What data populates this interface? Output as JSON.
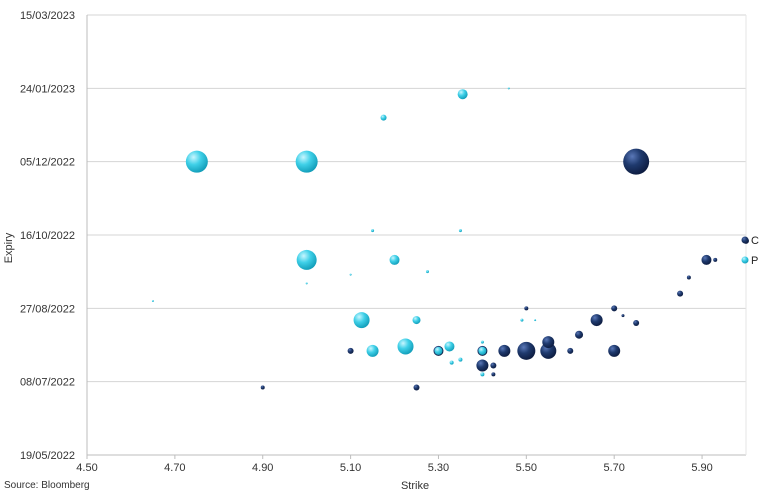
{
  "chart_data": {
    "type": "scatter",
    "xlabel": "Strike",
    "ylabel": "Expiry",
    "xlim": [
      4.5,
      6.0
    ],
    "ylim": [
      "2022-05-19",
      "2023-03-15"
    ],
    "x_ticks": [
      "4.50",
      "4.70",
      "4.90",
      "5.10",
      "5.30",
      "5.50",
      "5.70",
      "5.90"
    ],
    "x_tick_values": [
      4.5,
      4.7,
      4.9,
      5.1,
      5.3,
      5.5,
      5.7,
      5.9
    ],
    "y_ticks": [
      "15/03/2023",
      "24/01/2023",
      "05/12/2022",
      "16/10/2022",
      "27/08/2022",
      "08/07/2022",
      "19/05/2022"
    ],
    "y_tick_values": [
      "2023-03-15",
      "2023-01-24",
      "2022-12-05",
      "2022-10-16",
      "2022-08-27",
      "2022-07-08",
      "2022-05-19"
    ],
    "grid": "horizontal",
    "legend_position": "right",
    "source": "Source: Bloomberg",
    "series": [
      {
        "name": "C",
        "color": "#1a2f5e",
        "points": [
          {
            "x": 5.75,
            "y": "2022-12-05",
            "size": 13
          },
          {
            "x": 4.9,
            "y": "2022-07-04",
            "size": 2
          },
          {
            "x": 5.1,
            "y": "2022-07-29",
            "size": 3
          },
          {
            "x": 5.25,
            "y": "2022-07-04",
            "size": 3
          },
          {
            "x": 5.3,
            "y": "2022-07-29",
            "size": 5
          },
          {
            "x": 5.4,
            "y": "2022-07-29",
            "size": 5
          },
          {
            "x": 5.4,
            "y": "2022-07-19",
            "size": 6
          },
          {
            "x": 5.425,
            "y": "2022-07-19",
            "size": 3
          },
          {
            "x": 5.425,
            "y": "2022-07-13",
            "size": 2
          },
          {
            "x": 5.45,
            "y": "2022-07-29",
            "size": 6
          },
          {
            "x": 5.5,
            "y": "2022-07-29",
            "size": 9
          },
          {
            "x": 5.5,
            "y": "2022-08-27",
            "size": 2
          },
          {
            "x": 5.55,
            "y": "2022-07-29",
            "size": 8
          },
          {
            "x": 5.55,
            "y": "2022-08-04",
            "size": 6
          },
          {
            "x": 5.6,
            "y": "2022-07-29",
            "size": 3
          },
          {
            "x": 5.62,
            "y": "2022-08-09",
            "size": 4
          },
          {
            "x": 5.66,
            "y": "2022-08-19",
            "size": 6
          },
          {
            "x": 5.7,
            "y": "2022-07-29",
            "size": 6
          },
          {
            "x": 5.7,
            "y": "2022-08-27",
            "size": 3
          },
          {
            "x": 5.72,
            "y": "2022-08-22",
            "size": 1.5
          },
          {
            "x": 5.75,
            "y": "2022-08-17",
            "size": 3
          },
          {
            "x": 5.85,
            "y": "2022-09-06",
            "size": 3
          },
          {
            "x": 5.87,
            "y": "2022-09-17",
            "size": 2
          },
          {
            "x": 5.91,
            "y": "2022-09-29",
            "size": 5
          },
          {
            "x": 5.93,
            "y": "2022-09-29",
            "size": 2
          },
          {
            "x": 6.0,
            "y": "2022-10-12",
            "size": 3
          }
        ]
      },
      {
        "name": "P",
        "color": "#29c4dd",
        "points": [
          {
            "x": 4.75,
            "y": "2022-12-05",
            "size": 11
          },
          {
            "x": 5.0,
            "y": "2022-12-05",
            "size": 11
          },
          {
            "x": 5.0,
            "y": "2022-09-29",
            "size": 10
          },
          {
            "x": 5.355,
            "y": "2023-01-20",
            "size": 5
          },
          {
            "x": 5.175,
            "y": "2023-01-04",
            "size": 3
          },
          {
            "x": 5.2,
            "y": "2022-09-29",
            "size": 5
          },
          {
            "x": 5.125,
            "y": "2022-08-19",
            "size": 8
          },
          {
            "x": 5.15,
            "y": "2022-07-29",
            "size": 6
          },
          {
            "x": 5.225,
            "y": "2022-08-01",
            "size": 8
          },
          {
            "x": 5.25,
            "y": "2022-08-19",
            "size": 4
          },
          {
            "x": 5.325,
            "y": "2022-08-01",
            "size": 5
          },
          {
            "x": 5.3,
            "y": "2022-07-29",
            "size": 4
          },
          {
            "x": 5.4,
            "y": "2022-07-29",
            "size": 4
          },
          {
            "x": 5.35,
            "y": "2022-07-23",
            "size": 2
          },
          {
            "x": 5.33,
            "y": "2022-07-21",
            "size": 2
          },
          {
            "x": 5.4,
            "y": "2022-07-13",
            "size": 2
          },
          {
            "x": 5.275,
            "y": "2022-09-21",
            "size": 1.5
          },
          {
            "x": 5.15,
            "y": "2022-10-19",
            "size": 1.5
          },
          {
            "x": 5.35,
            "y": "2022-10-19",
            "size": 1.5
          },
          {
            "x": 4.65,
            "y": "2022-09-01",
            "size": 1
          },
          {
            "x": 5.1,
            "y": "2022-09-19",
            "size": 1
          },
          {
            "x": 5.0,
            "y": "2022-09-13",
            "size": 1
          },
          {
            "x": 5.46,
            "y": "2023-01-24",
            "size": 1
          },
          {
            "x": 5.49,
            "y": "2022-08-19",
            "size": 1.5
          },
          {
            "x": 5.52,
            "y": "2022-08-19",
            "size": 1
          },
          {
            "x": 5.4,
            "y": "2022-08-04",
            "size": 1.5
          }
        ]
      }
    ]
  }
}
